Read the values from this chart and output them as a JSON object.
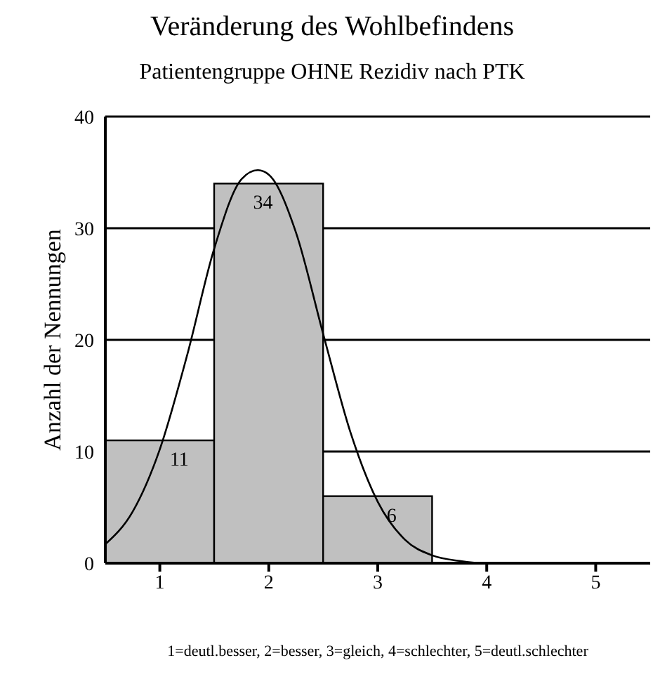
{
  "chart_data": {
    "type": "histogram",
    "title": "Veränderung des Wohlbefindens",
    "subtitle": "Patientengruppe OHNE Rezidiv nach PTK",
    "xlabel": "1=deutl.besser, 2=besser, 3=gleich, 4=schlechter, 5=deutl.schlechter",
    "ylabel": "Anzahl der Nennungen",
    "bins": [
      0.5,
      1.5,
      2.5,
      3.5,
      4.5,
      5.5
    ],
    "values": [
      11,
      34,
      6,
      0,
      0
    ],
    "color": "#c0c0c0",
    "value_labels": [
      "11",
      "34",
      "6",
      null,
      null
    ],
    "series": [
      {
        "type": "line",
        "color": "#000000",
        "x": [
          0.5,
          0.75,
          1.0,
          1.25,
          1.5,
          1.75,
          1.9,
          2.0,
          2.25,
          2.5,
          2.75,
          3.0,
          3.25,
          3.5,
          3.75,
          4.0,
          4.5,
          5.0,
          5.5
        ],
        "values": [
          1.7,
          4.6,
          10.2,
          18.6,
          28.2,
          34.4,
          35.2,
          34.8,
          29.6,
          20.5,
          11.7,
          5.5,
          2.1,
          0.7,
          0.2,
          0,
          0,
          0,
          0
        ]
      }
    ],
    "xlim": [
      0.5,
      5.5
    ],
    "xticks": [
      1,
      2,
      3,
      4,
      5
    ],
    "ylim": [
      0,
      40
    ],
    "yticks": [
      0,
      10,
      20,
      30,
      40
    ],
    "grid": "y",
    "marker": "none"
  }
}
